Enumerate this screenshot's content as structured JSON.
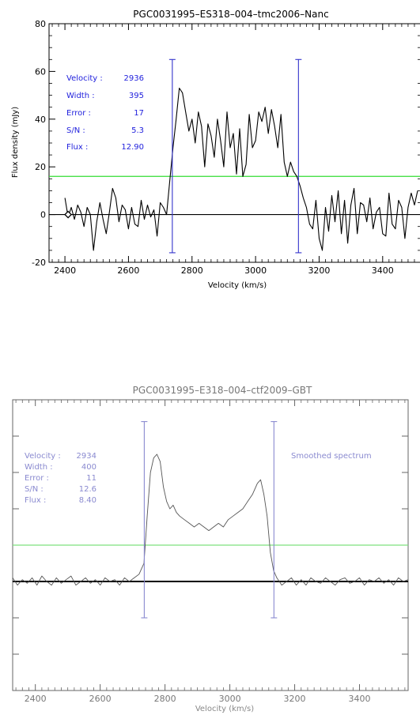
{
  "chart_data": [
    {
      "type": "line",
      "title": "PGC0031995–ES318–004–tmc2006–Nanc",
      "xlabel": "Velocity (km/s)",
      "ylabel": "Flux density (mJy)",
      "xlim": [
        2350,
        3520
      ],
      "ylim": [
        -20,
        80
      ],
      "xticks": [
        "2400",
        "2600",
        "2800",
        "3000",
        "3200",
        "3400"
      ],
      "yticks": [
        "-20",
        "0",
        "20",
        "40",
        "60",
        "80"
      ],
      "xtick_values": [
        2400,
        2600,
        2800,
        3000,
        3200,
        3400
      ],
      "ytick_values": [
        -20,
        0,
        20,
        40,
        60,
        80
      ],
      "annotation": {
        "labels": [
          "Velocity :",
          "Width :",
          "Error :",
          "S/N :",
          "Flux :"
        ],
        "values": [
          "2936",
          "395",
          "17",
          "5.3",
          "12.90"
        ]
      },
      "threshold_level": 16,
      "baseline_level": 0,
      "markers": [
        2738,
        3135
      ],
      "marker_range": [
        -16,
        65
      ],
      "start_marker": [
        2410,
        0
      ],
      "spectrum": {
        "x": [
          2400,
          2410,
          2420,
          2430,
          2440,
          2450,
          2460,
          2470,
          2480,
          2490,
          2500,
          2510,
          2520,
          2530,
          2540,
          2550,
          2560,
          2570,
          2580,
          2590,
          2600,
          2610,
          2620,
          2630,
          2640,
          2650,
          2660,
          2670,
          2680,
          2690,
          2700,
          2710,
          2720,
          2730,
          2740,
          2750,
          2760,
          2770,
          2780,
          2790,
          2800,
          2810,
          2820,
          2830,
          2840,
          2850,
          2860,
          2870,
          2880,
          2890,
          2900,
          2910,
          2920,
          2930,
          2940,
          2950,
          2960,
          2970,
          2980,
          2990,
          3000,
          3010,
          3020,
          3030,
          3040,
          3050,
          3060,
          3070,
          3080,
          3090,
          3100,
          3110,
          3120,
          3130,
          3140,
          3150,
          3160,
          3170,
          3180,
          3190,
          3200,
          3210,
          3220,
          3230,
          3240,
          3250,
          3260,
          3270,
          3280,
          3290,
          3300,
          3310,
          3320,
          3330,
          3340,
          3350,
          3360,
          3370,
          3380,
          3390,
          3400,
          3410,
          3420,
          3430,
          3440,
          3450,
          3460,
          3470,
          3480,
          3490,
          3500,
          3510
        ],
        "y": [
          7,
          -1,
          3,
          -2,
          4,
          1,
          -5,
          3,
          0,
          -15,
          -3,
          5,
          -2,
          -8,
          1,
          11,
          7,
          -3,
          4,
          2,
          -6,
          3,
          -4,
          -5,
          6,
          -2,
          4,
          -1,
          2,
          -9,
          5,
          3,
          0,
          14,
          28,
          40,
          53,
          51,
          43,
          35,
          40,
          30,
          43,
          37,
          20,
          38,
          33,
          24,
          40,
          31,
          20,
          43,
          28,
          34,
          17,
          36,
          16,
          21,
          42,
          28,
          31,
          43,
          39,
          45,
          34,
          44,
          37,
          28,
          42,
          22,
          16,
          22,
          18,
          16,
          12,
          7,
          3,
          -4,
          -6,
          6,
          -10,
          -15,
          3,
          -7,
          8,
          -3,
          10,
          -8,
          6,
          -12,
          4,
          11,
          -8,
          5,
          4,
          -3,
          7,
          -6,
          1,
          3,
          -8,
          -9,
          9,
          -4,
          -6,
          6,
          3,
          -10,
          3,
          9,
          4,
          10
        ]
      }
    },
    {
      "type": "line",
      "title": "PGC0031995–E318–004–ctf2009–GBT",
      "xlabel": "Velocity (km/s)",
      "ylabel": "",
      "xlim": [
        2330,
        3550
      ],
      "ylim": [
        -30,
        50
      ],
      "xticks": [
        "2400",
        "2600",
        "2800",
        "3000",
        "3200",
        "3400"
      ],
      "xtick_values": [
        2400,
        2600,
        2800,
        3000,
        3200,
        3400
      ],
      "annotation": {
        "labels": [
          "Velocity :",
          "Width :",
          "Error :",
          "S/N :",
          "Flux :"
        ],
        "values": [
          "2934",
          "400",
          "11",
          "12.6",
          "8.40"
        ]
      },
      "note": "Smoothed spectrum",
      "threshold_level": 10,
      "baseline_level": 0,
      "markers": [
        2736,
        3136
      ],
      "marker_range": [
        -10,
        44
      ],
      "spectrum": {
        "x": [
          2330,
          2345,
          2360,
          2375,
          2390,
          2405,
          2420,
          2435,
          2450,
          2465,
          2480,
          2495,
          2510,
          2525,
          2540,
          2555,
          2570,
          2585,
          2600,
          2615,
          2630,
          2645,
          2660,
          2675,
          2690,
          2705,
          2720,
          2735,
          2745,
          2755,
          2765,
          2775,
          2785,
          2795,
          2805,
          2815,
          2825,
          2835,
          2845,
          2860,
          2875,
          2890,
          2905,
          2920,
          2935,
          2950,
          2965,
          2980,
          2995,
          3010,
          3025,
          3040,
          3055,
          3070,
          3085,
          3095,
          3105,
          3115,
          3125,
          3135,
          3145,
          3160,
          3175,
          3190,
          3205,
          3220,
          3235,
          3250,
          3265,
          3280,
          3295,
          3310,
          3325,
          3340,
          3355,
          3370,
          3385,
          3400,
          3415,
          3430,
          3445,
          3460,
          3475,
          3490,
          3505,
          3520,
          3535,
          3550
        ],
        "y": [
          1,
          -1,
          0.5,
          -0.5,
          1,
          -1,
          1.5,
          0,
          -1,
          1,
          -0.5,
          0.5,
          1.5,
          -1,
          0,
          1,
          -0.5,
          0.5,
          -1,
          1,
          0,
          0.5,
          -1,
          1,
          0,
          1,
          2,
          5,
          18,
          30,
          34,
          35,
          33,
          26,
          22,
          20,
          21,
          19,
          18,
          17,
          16,
          15,
          16,
          15,
          14,
          15,
          16,
          15,
          17,
          18,
          19,
          20,
          22,
          24,
          27,
          28,
          24,
          18,
          8,
          3,
          1,
          -1,
          0,
          1,
          -1,
          0.5,
          -1,
          1,
          0,
          -0.5,
          1,
          0,
          -1,
          0.5,
          1,
          -0.5,
          0,
          1,
          -1,
          0.5,
          0,
          1,
          -0.5,
          0.5,
          -1,
          1,
          0,
          0.5
        ]
      }
    }
  ]
}
